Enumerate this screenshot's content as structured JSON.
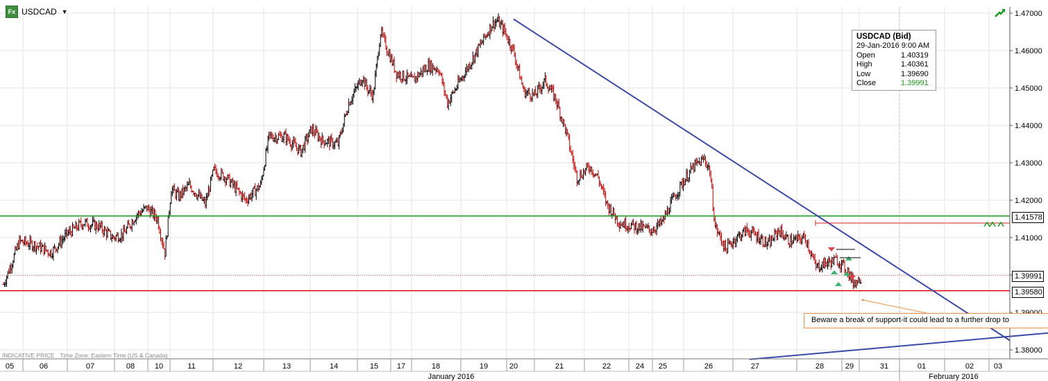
{
  "header": {
    "symbol": "USDCAD",
    "icon": "fx-icon",
    "dropdown_icon": "triangle-down-icon"
  },
  "tooltip": {
    "title": "USDCAD (Bid)",
    "datetime": "29-Jan-2016 9:00 AM",
    "rows": [
      {
        "label": "Open",
        "value": "1.40319"
      },
      {
        "label": "High",
        "value": "1.40361"
      },
      {
        "label": "Low",
        "value": "1.39690"
      },
      {
        "label": "Close",
        "value": "1.39991"
      }
    ]
  },
  "annotation": "Beware a break of support-it could lead to a further drop to",
  "footer": {
    "price_type": "INDICATIVE PRICE",
    "timezone": "Time Zone: Eastern Time (US & Canada)"
  },
  "price_labels": {
    "resistance": "1.41578",
    "current": "1.39991",
    "support": "1.39580"
  },
  "colors": {
    "up": "#000000",
    "down": "#cc0000",
    "resistance": "#1a9a1a",
    "support": "#dd0000",
    "trend": "#3a4aa8",
    "annotation_border": "#e8914a"
  },
  "chart_data": {
    "type": "candlestick-ohlc",
    "symbol": "USDCAD (Bid)",
    "interval": "hourly",
    "y_ticks": [
      "1.38000",
      "1.39000",
      "1.40000",
      "1.41000",
      "1.42000",
      "1.43000",
      "1.44000",
      "1.45000",
      "1.46000",
      "1.47000"
    ],
    "ylim": [
      1.378,
      1.4725
    ],
    "day_labels": [
      "05",
      "06",
      "07",
      "08",
      "10",
      "11",
      "12",
      "13",
      "14",
      "15",
      "17",
      "18",
      "19",
      "20",
      "21",
      "22",
      "24",
      "25",
      "26",
      "27",
      "28",
      "29",
      "31",
      "01",
      "02",
      "03"
    ],
    "month_labels": [
      "January 2016",
      "February 2016"
    ],
    "guide_points": [
      [
        0,
        1.3975
      ],
      [
        6,
        1.402
      ],
      [
        15,
        1.409
      ],
      [
        30,
        1.408
      ],
      [
        45,
        1.406
      ],
      [
        60,
        1.411
      ],
      [
        75,
        1.414
      ],
      [
        90,
        1.413
      ],
      [
        103,
        1.41
      ],
      [
        113,
        1.411
      ],
      [
        125,
        1.416
      ],
      [
        135,
        1.418
      ],
      [
        145,
        1.415
      ],
      [
        152,
        1.406
      ],
      [
        158,
        1.423
      ],
      [
        165,
        1.421
      ],
      [
        175,
        1.424
      ],
      [
        190,
        1.419
      ],
      [
        198,
        1.428
      ],
      [
        210,
        1.426
      ],
      [
        228,
        1.42
      ],
      [
        242,
        1.424
      ],
      [
        250,
        1.437
      ],
      [
        265,
        1.437
      ],
      [
        280,
        1.433
      ],
      [
        290,
        1.439
      ],
      [
        300,
        1.436
      ],
      [
        315,
        1.435
      ],
      [
        325,
        1.446
      ],
      [
        338,
        1.453
      ],
      [
        342,
        1.45
      ],
      [
        348,
        1.448
      ],
      [
        355,
        1.465
      ],
      [
        370,
        1.454
      ],
      [
        385,
        1.452
      ],
      [
        400,
        1.456
      ],
      [
        410,
        1.455
      ],
      [
        418,
        1.446
      ],
      [
        430,
        1.452
      ],
      [
        440,
        1.457
      ],
      [
        450,
        1.462
      ],
      [
        460,
        1.467
      ],
      [
        465,
        1.468
      ],
      [
        472,
        1.465
      ],
      [
        480,
        1.46
      ],
      [
        490,
        1.449
      ],
      [
        500,
        1.448
      ],
      [
        510,
        1.452
      ],
      [
        520,
        1.447
      ],
      [
        530,
        1.438
      ],
      [
        540,
        1.426
      ],
      [
        552,
        1.429
      ],
      [
        560,
        1.426
      ],
      [
        568,
        1.419
      ],
      [
        580,
        1.414
      ],
      [
        595,
        1.413
      ],
      [
        610,
        1.412
      ],
      [
        620,
        1.414
      ],
      [
        630,
        1.42
      ],
      [
        640,
        1.425
      ],
      [
        650,
        1.429
      ],
      [
        660,
        1.431
      ],
      [
        665,
        1.428
      ],
      [
        670,
        1.413
      ],
      [
        680,
        1.407
      ],
      [
        690,
        1.41
      ],
      [
        700,
        1.412
      ],
      [
        712,
        1.41
      ],
      [
        720,
        1.408
      ],
      [
        730,
        1.412
      ],
      [
        740,
        1.409
      ],
      [
        755,
        1.41
      ],
      [
        765,
        1.402
      ],
      [
        772,
        1.403
      ],
      [
        785,
        1.404
      ],
      [
        795,
        1.401
      ],
      [
        800,
        1.398
      ],
      [
        807,
        1.399
      ]
    ],
    "n_bars": 808,
    "lines": [
      {
        "kind": "resistance",
        "value": 1.41578
      },
      {
        "kind": "support",
        "value": 1.3958
      },
      {
        "kind": "current",
        "value": 1.39991
      }
    ]
  }
}
